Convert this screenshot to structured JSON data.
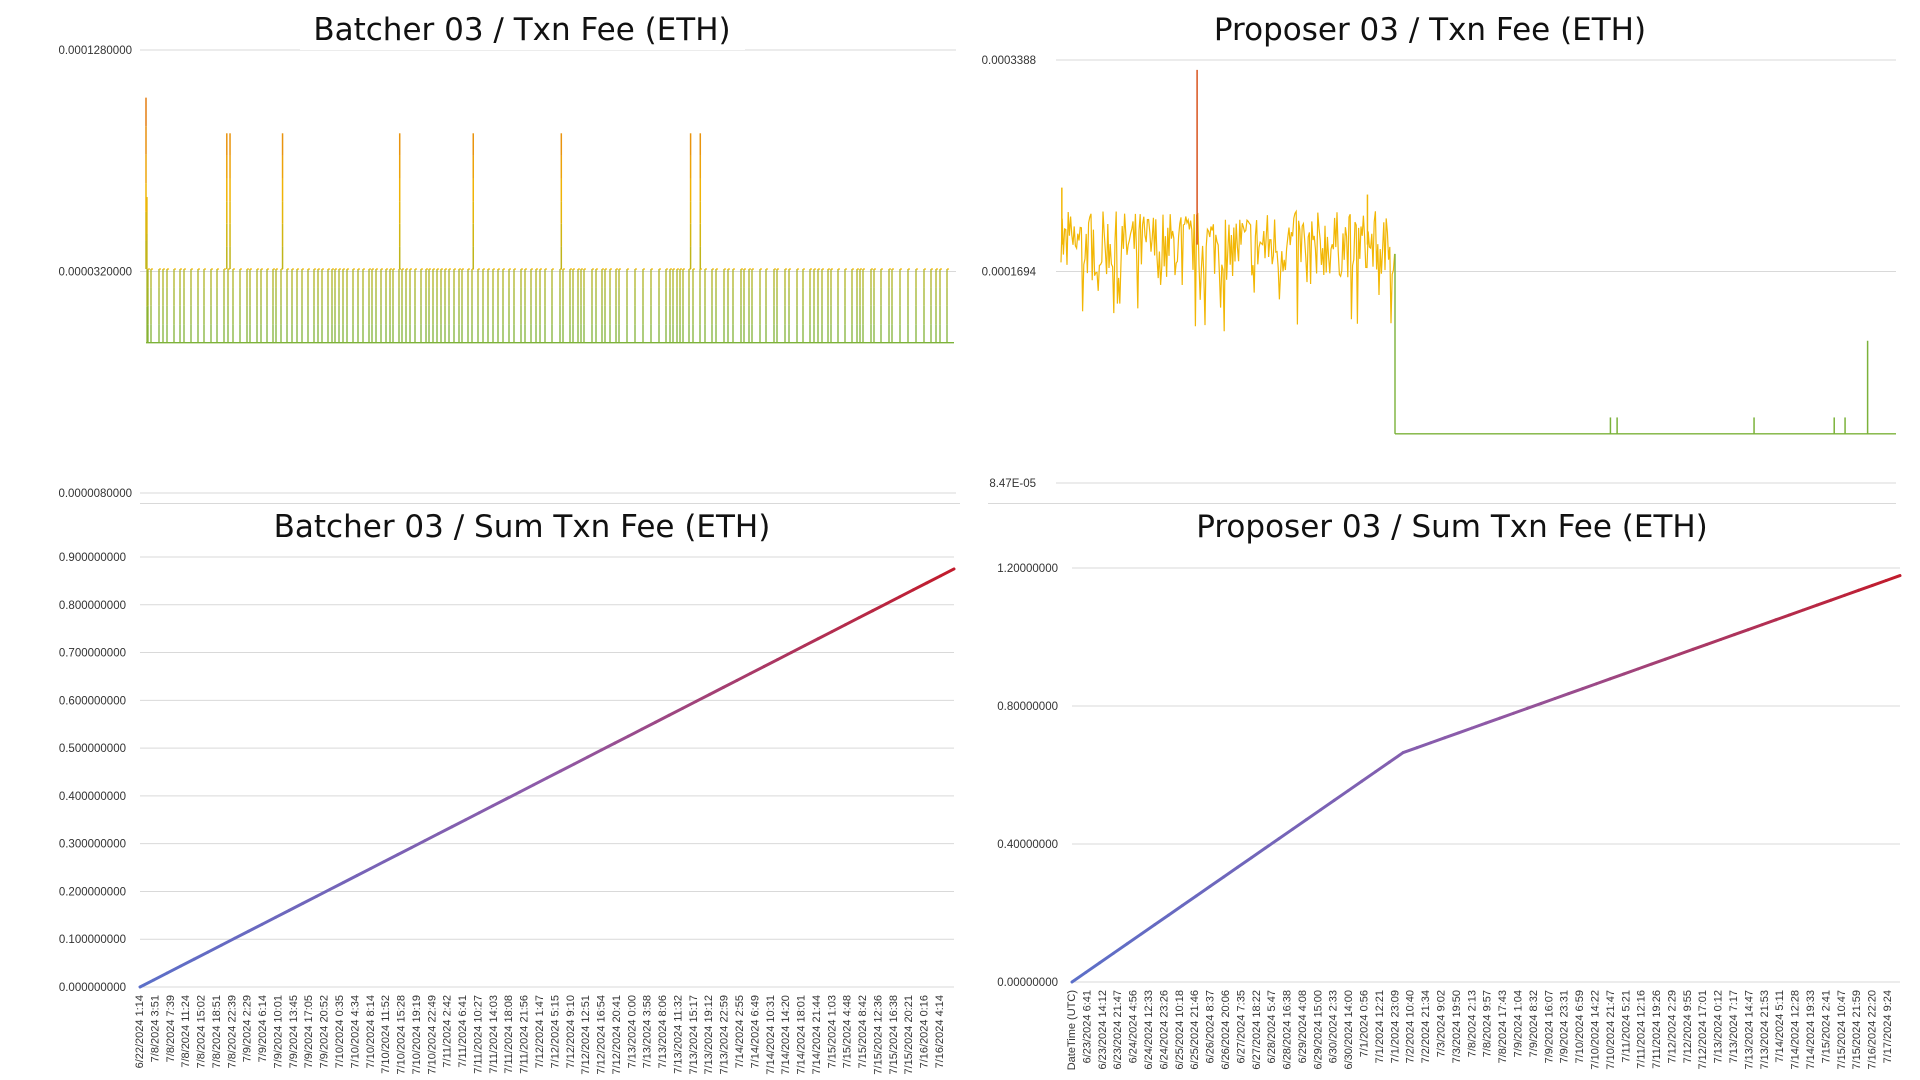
{
  "colors": {
    "grid": "#d9d9d9",
    "spike_high": "#d9541e",
    "mid": "#f2b705",
    "low": "#7bb23a",
    "sum_start": "#5b6fc9",
    "sum_mid": "#8e5aa8",
    "sum_end": "#c21b2b"
  },
  "chart_data": [
    {
      "id": "batcher-fee",
      "type": "line",
      "title": "Batcher 03 / Txn Fee (ETH)",
      "y_tick_labels": [
        "0.0001280000",
        "0.0000320000",
        "0.0000080000"
      ],
      "y_scale": "log",
      "ylim": [
        8e-06,
        0.000128
      ],
      "series": [
        {
          "baseline": 2.05e-05,
          "typical_value": 3.25e-05,
          "initial_value": 5.1e-05,
          "spikes": [
            {
              "x": 0.0,
              "value": 9.5e-05
            },
            {
              "x": 0.1,
              "value": 7.6e-05
            },
            {
              "x": 0.104,
              "value": 7.6e-05
            },
            {
              "x": 0.169,
              "value": 7.6e-05
            },
            {
              "x": 0.314,
              "value": 7.6e-05
            },
            {
              "x": 0.405,
              "value": 7.6e-05
            },
            {
              "x": 0.514,
              "value": 7.6e-05
            },
            {
              "x": 0.674,
              "value": 7.6e-05
            },
            {
              "x": 0.686,
              "value": 7.6e-05
            }
          ]
        }
      ]
    },
    {
      "id": "proposer-fee",
      "type": "line",
      "title": "Proposer 03 / Txn Fee (ETH)",
      "y_tick_labels": [
        "0.0003388",
        "0.0001694",
        "8.47E-05"
      ],
      "y_scale": "log",
      "ylim": [
        8.47e-05,
        0.0003388
      ],
      "series": [
        {
          "phase1_end_fraction": 0.4,
          "phase1_mean": 0.000185,
          "phase1_noise_range": [
            0.00015,
            0.0002
          ],
          "phase2_baseline": 9.95e-05,
          "spikes": [
            {
              "x": 0.163,
              "value": 0.000328
            },
            {
              "x": 0.001,
              "value": 0.000223
            },
            {
              "x": 0.367,
              "value": 0.000218
            },
            {
              "x": 0.658,
              "value": 0.000105
            },
            {
              "x": 0.666,
              "value": 0.000105
            },
            {
              "x": 0.83,
              "value": 0.000105
            },
            {
              "x": 0.926,
              "value": 0.000105
            },
            {
              "x": 0.939,
              "value": 0.000105
            },
            {
              "x": 0.966,
              "value": 0.000135
            }
          ]
        }
      ]
    },
    {
      "id": "batcher-sum",
      "type": "line",
      "title": "Batcher 03 / Sum Txn Fee (ETH)",
      "ylim": [
        0,
        0.9
      ],
      "y_tick_labels": [
        "0.900000000",
        "0.800000000",
        "0.700000000",
        "0.600000000",
        "0.500000000",
        "0.400000000",
        "0.300000000",
        "0.200000000",
        "0.100000000",
        "0.000000000"
      ],
      "x_tick_labels": [
        "6/22/2024 1:14",
        "7/8/2024 3:51",
        "7/8/2024 7:39",
        "7/8/2024 11:24",
        "7/8/2024 15:02",
        "7/8/2024 18:51",
        "7/8/2024 22:39",
        "7/9/2024 2:29",
        "7/9/2024 6:14",
        "7/9/2024 10:01",
        "7/9/2024 13:45",
        "7/9/2024 17:05",
        "7/9/2024 20:52",
        "7/10/2024 0:35",
        "7/10/2024 4:34",
        "7/10/2024 8:14",
        "7/10/2024 11:52",
        "7/10/2024 15:28",
        "7/10/2024 19:19",
        "7/10/2024 22:49",
        "7/11/2024 2:42",
        "7/11/2024 6:41",
        "7/11/2024 10:27",
        "7/11/2024 14:03",
        "7/11/2024 18:08",
        "7/11/2024 21:56",
        "7/12/2024 1:47",
        "7/12/2024 5:15",
        "7/12/2024 9:10",
        "7/12/2024 12:51",
        "7/12/2024 16:54",
        "7/12/2024 20:41",
        "7/13/2024 0:00",
        "7/13/2024 3:58",
        "7/13/2024 8:06",
        "7/13/2024 11:32",
        "7/13/2024 15:17",
        "7/13/2024 19:12",
        "7/13/2024 22:59",
        "7/14/2024 2:55",
        "7/14/2024 6:49",
        "7/14/2024 10:31",
        "7/14/2024 14:20",
        "7/14/2024 18:01",
        "7/14/2024 21:44",
        "7/15/2024 1:03",
        "7/15/2024 4:48",
        "7/15/2024 8:42",
        "7/15/2024 12:36",
        "7/15/2024 16:38",
        "7/15/2024 20:21",
        "7/16/2024 0:16",
        "7/16/2024 4:14"
      ],
      "series": [
        {
          "points": [
            [
              0,
              0.0
            ],
            [
              1,
              0.875
            ]
          ]
        }
      ]
    },
    {
      "id": "proposer-sum",
      "type": "line",
      "title": "Proposer 03 / Sum Txn Fee (ETH)",
      "ylim": [
        0,
        1.2
      ],
      "y_tick_labels": [
        "1.20000000",
        "0.80000000",
        "0.40000000",
        "0.00000000"
      ],
      "x_tick_labels": [
        "DateTime (UTC)",
        "6/23/2024 6:41",
        "6/23/2024 14:12",
        "6/23/2024 21:47",
        "6/24/2024 4:56",
        "6/24/2024 12:33",
        "6/24/2024 23:26",
        "6/25/2024 10:18",
        "6/25/2024 21:46",
        "6/26/2024 8:37",
        "6/26/2024 20:06",
        "6/27/2024 7:35",
        "6/27/2024 18:22",
        "6/28/2024 5:47",
        "6/28/2024 16:38",
        "6/29/2024 4:08",
        "6/29/2024 15:00",
        "6/30/2024 2:33",
        "6/30/2024 14:00",
        "7/1/2024 0:56",
        "7/1/2024 12:21",
        "7/1/2024 23:09",
        "7/2/2024 10:40",
        "7/2/2024 21:34",
        "7/3/2024 9:02",
        "7/3/2024 19:50",
        "7/8/2024 2:13",
        "7/8/2024 9:57",
        "7/8/2024 17:43",
        "7/9/2024 1:04",
        "7/9/2024 8:32",
        "7/9/2024 16:07",
        "7/9/2024 23:31",
        "7/10/2024 6:59",
        "7/10/2024 14:22",
        "7/10/2024 21:47",
        "7/11/2024 5:21",
        "7/11/2024 12:16",
        "7/11/2024 19:26",
        "7/12/2024 2:29",
        "7/12/2024 9:55",
        "7/12/2024 17:01",
        "7/13/2024 0:12",
        "7/13/2024 7:17",
        "7/13/2024 14:47",
        "7/13/2024 21:53",
        "7/14/2024 5:11",
        "7/14/2024 12:28",
        "7/14/2024 19:33",
        "7/15/2024 2:41",
        "7/15/2024 10:47",
        "7/15/2024 21:59",
        "7/16/2024 22:20",
        "7/17/2024 9:24"
      ],
      "series": [
        {
          "points": [
            [
              0,
              0.0
            ],
            [
              0.4,
              0.665
            ],
            [
              1,
              1.178
            ]
          ]
        }
      ]
    }
  ]
}
